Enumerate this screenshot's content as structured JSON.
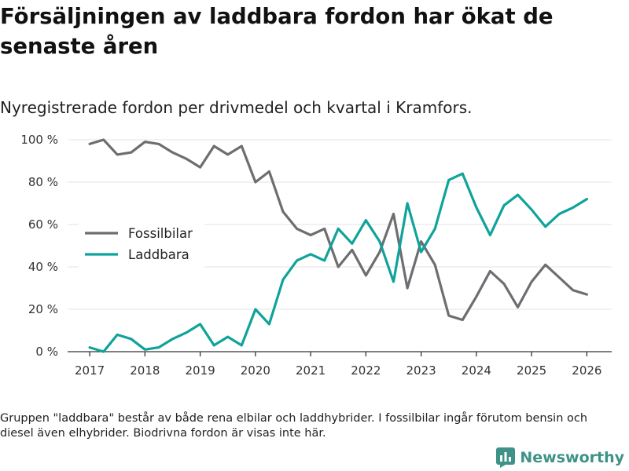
{
  "header": {
    "title": "Försäljningen av laddbara fordon har ökat de senaste åren",
    "subtitle": "Nyregistrerade fordon per drivmedel och kvartal i Kramfors."
  },
  "footer": {
    "note": "Gruppen \"laddbara\" består av både rena elbilar och laddhybrider. I fossilbilar ingår förutom bensin och diesel även elhybrider. Biodrivna fordon är visas inte här.",
    "brand": "Newsworthy"
  },
  "colors": {
    "fossil": "#6e6d72",
    "laddbara": "#0fa39a",
    "grid": "#e3e3e3",
    "axis": "#333333",
    "brand": "#3f9288"
  },
  "chart_data": {
    "type": "line",
    "title": "Försäljningen av laddbara fordon har ökat de senaste åren",
    "subtitle": "Nyregistrerade fordon per drivmedel och kvartal i Kramfors.",
    "xlabel": "",
    "ylabel": "",
    "x": [
      2017.0,
      2017.25,
      2017.5,
      2017.75,
      2018.0,
      2018.25,
      2018.5,
      2018.75,
      2019.0,
      2019.25,
      2019.5,
      2019.75,
      2020.0,
      2020.25,
      2020.5,
      2020.75,
      2021.0,
      2021.25,
      2021.5,
      2021.75,
      2022.0,
      2022.25,
      2022.5,
      2022.75,
      2023.0,
      2023.25,
      2023.5,
      2023.75,
      2024.0,
      2024.25,
      2024.5,
      2024.75,
      2025.0,
      2025.25,
      2025.5,
      2025.75,
      2026.0
    ],
    "series": [
      {
        "name": "Fossilbilar",
        "color": "#6e6d72",
        "values": [
          98,
          100,
          93,
          94,
          99,
          98,
          94,
          91,
          87,
          97,
          93,
          97,
          80,
          85,
          66,
          58,
          55,
          58,
          40,
          48,
          36,
          47,
          65,
          30,
          52,
          41,
          17,
          15,
          26,
          38,
          32,
          21,
          33,
          41,
          35,
          29,
          27
        ]
      },
      {
        "name": "Laddbara",
        "color": "#0fa39a",
        "values": [
          2,
          0,
          8,
          6,
          1,
          2,
          6,
          9,
          13,
          3,
          7,
          3,
          20,
          13,
          34,
          43,
          46,
          43,
          58,
          51,
          62,
          52,
          33,
          70,
          47,
          58,
          81,
          84,
          68,
          55,
          69,
          74,
          67,
          59,
          65,
          68,
          72
        ]
      }
    ],
    "xticks": [
      2017,
      2018,
      2019,
      2020,
      2021,
      2022,
      2023,
      2024,
      2025,
      2026
    ],
    "xtick_labels": [
      "2017",
      "2018",
      "2019",
      "2020",
      "2021",
      "2022",
      "2023",
      "2024",
      "2025",
      "2026"
    ],
    "yticks": [
      0,
      20,
      40,
      60,
      80,
      100
    ],
    "ytick_labels": [
      "0 %",
      "20 %",
      "40 %",
      "60 %",
      "80 %",
      "100 %"
    ],
    "xlim": [
      2016.6,
      2026.45
    ],
    "ylim": [
      0,
      100
    ],
    "grid": true,
    "legend": [
      "Fossilbilar",
      "Laddbara"
    ],
    "legend_position": "center-left"
  }
}
